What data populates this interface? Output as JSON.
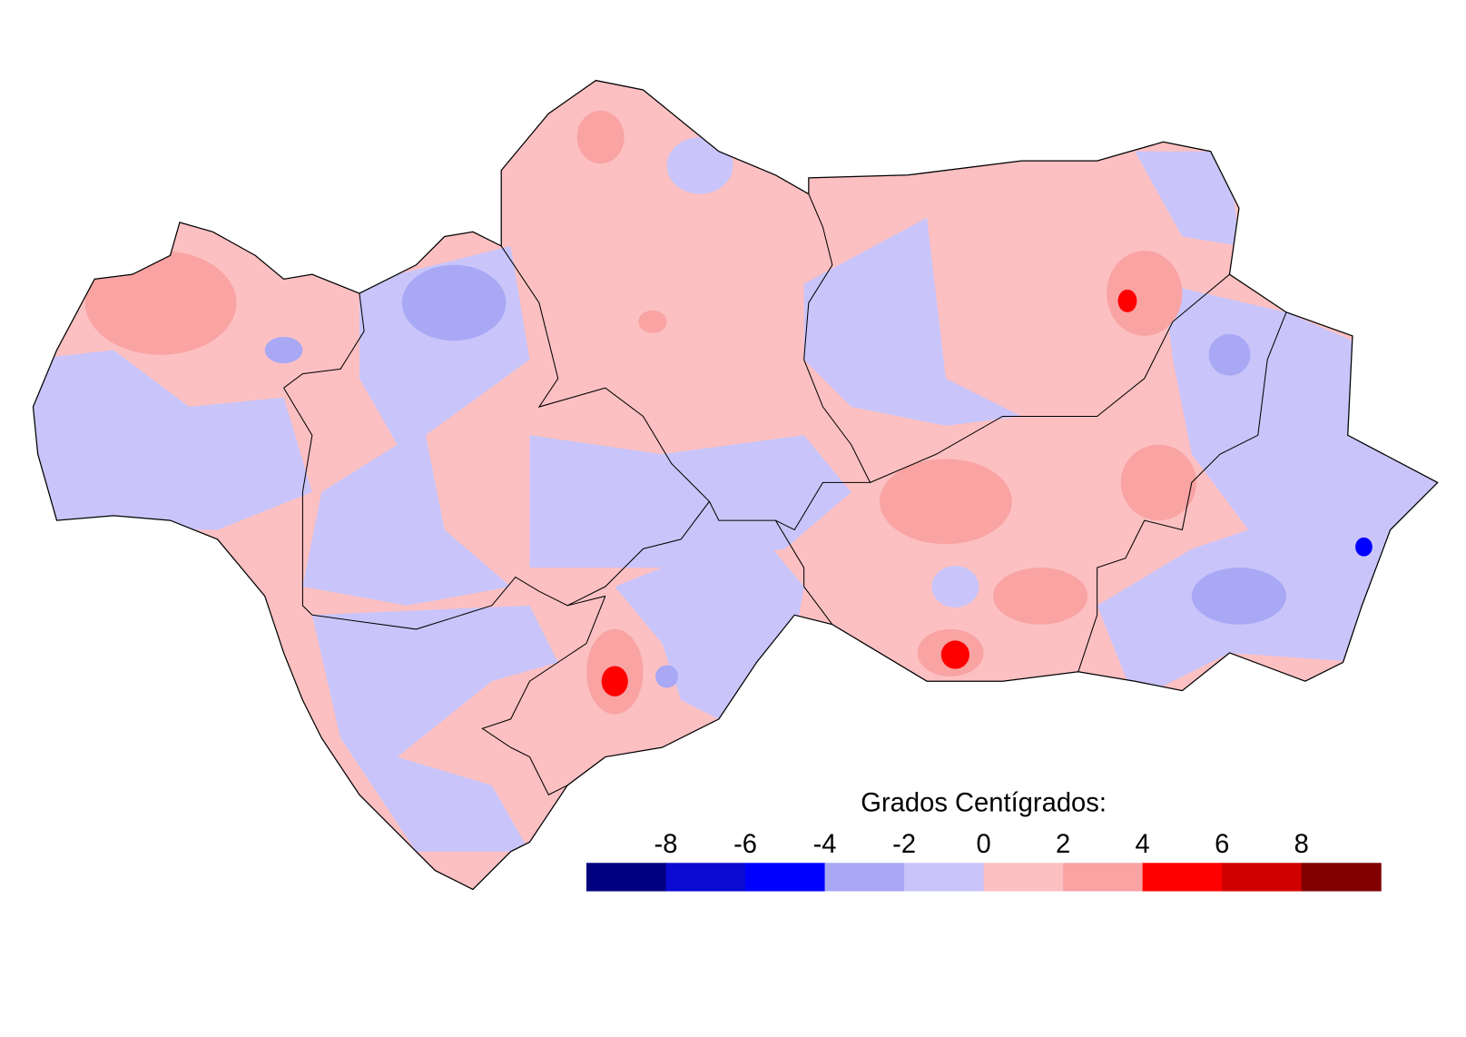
{
  "legend": {
    "title": "Grados Centígrados:",
    "ticks": [
      -8,
      -6,
      -4,
      -2,
      0,
      2,
      4,
      6,
      8
    ],
    "colors": [
      "#000080",
      "#0a0ad2",
      "#0000ff",
      "#a8a8f5",
      "#c9c5fa",
      "#fcc0c2",
      "#f9a3a3",
      "#ff0000",
      "#d10000",
      "#800000"
    ]
  }
}
